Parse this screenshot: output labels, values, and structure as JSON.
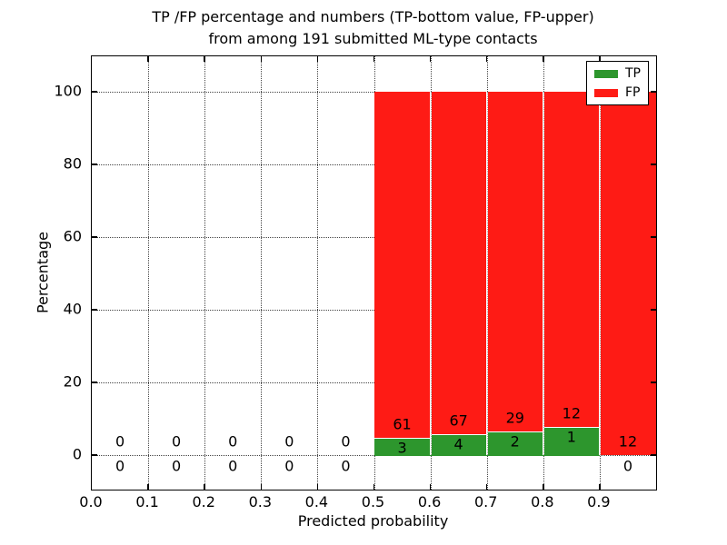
{
  "title": {
    "line1": "TP /FP percentage and numbers (TP-bottom value, FP-upper)",
    "line2": "from among 191 submitted ML-type contacts"
  },
  "chart_data": {
    "type": "bar",
    "stacked": true,
    "normalized": "percent (each bin TP+FP stacked to 100%)",
    "title": "TP /FP percentage and numbers (TP-bottom value, FP-upper) from among 191 submitted ML-type contacts",
    "xlabel": "Predicted probability",
    "ylabel": "Percentage",
    "xlim": [
      0.0,
      1.0
    ],
    "ylim": [
      -9.5,
      109.75
    ],
    "grid": true,
    "grid_style": "dotted",
    "bin_width": 0.1,
    "x_tick_values": [
      0.0,
      0.1,
      0.2,
      0.3,
      0.4,
      0.5,
      0.6,
      0.7,
      0.8,
      0.9
    ],
    "x_tick_labels": [
      "0.0",
      "0.1",
      "0.2",
      "0.3",
      "0.4",
      "0.5",
      "0.6",
      "0.7",
      "0.8",
      "0.9"
    ],
    "y_tick_values": [
      0,
      20,
      40,
      60,
      80,
      100
    ],
    "y_tick_labels": [
      "0",
      "20",
      "40",
      "60",
      "80",
      "100"
    ],
    "bins": [
      {
        "start": 0.0,
        "tp": 0,
        "fp": 0
      },
      {
        "start": 0.1,
        "tp": 0,
        "fp": 0
      },
      {
        "start": 0.2,
        "tp": 0,
        "fp": 0
      },
      {
        "start": 0.3,
        "tp": 0,
        "fp": 0
      },
      {
        "start": 0.4,
        "tp": 0,
        "fp": 0
      },
      {
        "start": 0.5,
        "tp": 3,
        "fp": 61
      },
      {
        "start": 0.6,
        "tp": 4,
        "fp": 67
      },
      {
        "start": 0.7,
        "tp": 2,
        "fp": 29
      },
      {
        "start": 0.8,
        "tp": 1,
        "fp": 12
      },
      {
        "start": 0.9,
        "tp": 0,
        "fp": 12
      }
    ],
    "series": [
      {
        "name": "TP",
        "color": "#2d962d"
      },
      {
        "name": "FP",
        "color": "#fe1b15"
      }
    ],
    "legend": {
      "position": "upper right",
      "entries": [
        "TP",
        "FP"
      ]
    }
  }
}
